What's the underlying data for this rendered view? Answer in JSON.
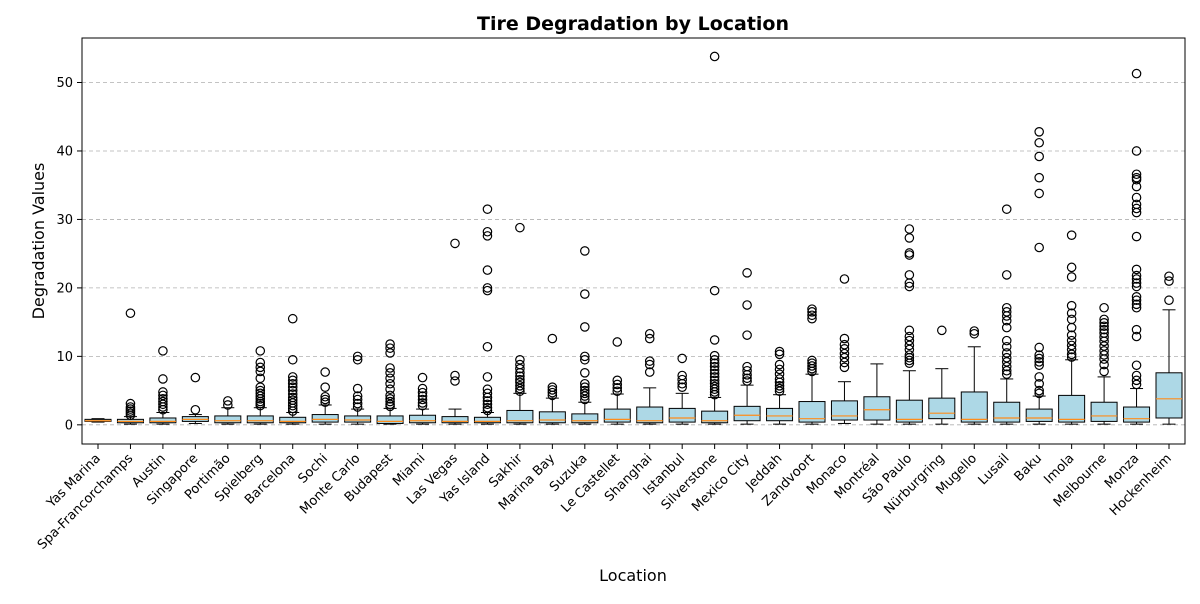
{
  "chart_data": {
    "type": "box",
    "title": "Tire Degradation by Location",
    "xlabel": "Location",
    "ylabel": "Degradation Values",
    "ylim": [
      -2.8,
      56.5
    ],
    "yticks": [
      0,
      10,
      20,
      30,
      40,
      50
    ],
    "grid": "y-dashed",
    "colors": {
      "box_fill": "#add8e6",
      "median": "#ff8c1a",
      "edge": "#000000",
      "grid": "#b0b0b0"
    },
    "categories": [
      "Yas Marina",
      "Spa-Francorchamps",
      "Austin",
      "Singapore",
      "Portimão",
      "Spielberg",
      "Barcelona",
      "Sochi",
      "Monte Carlo",
      "Budapest",
      "Miami",
      "Las Vegas",
      "Yas Island",
      "Sakhir",
      "Marina Bay",
      "Suzuka",
      "Le Castellet",
      "Shanghai",
      "Istanbul",
      "Silverstone",
      "Mexico City",
      "Jeddah",
      "Zandvoort",
      "Monaco",
      "Montréal",
      "São Paulo",
      "Nürburgring",
      "Mugello",
      "Lusail",
      "Baku",
      "Imola",
      "Melbourne",
      "Monza",
      "Hockenheim"
    ],
    "boxes": [
      {
        "whislo": 0.4,
        "q1": 0.5,
        "med": 0.6,
        "q3": 0.8,
        "whishi": 0.9,
        "fliers": []
      },
      {
        "whislo": 0.1,
        "q1": 0.3,
        "med": 0.5,
        "q3": 0.8,
        "whishi": 1.2,
        "fliers": [
          1.4,
          1.7,
          2.0,
          2.3,
          2.6,
          3.1,
          16.3
        ]
      },
      {
        "whislo": 0.1,
        "q1": 0.3,
        "med": 0.5,
        "q3": 1.0,
        "whishi": 1.8,
        "fliers": [
          2.2,
          2.6,
          3.0,
          3.4,
          3.8,
          4.3,
          4.8,
          6.7,
          10.8
        ]
      },
      {
        "whislo": 0.2,
        "q1": 0.5,
        "med": 0.8,
        "q3": 1.2,
        "whishi": 1.5,
        "fliers": [
          2.2,
          6.9
        ]
      },
      {
        "whislo": 0.1,
        "q1": 0.3,
        "med": 0.6,
        "q3": 1.3,
        "whishi": 2.5,
        "fliers": [
          2.9,
          3.5
        ]
      },
      {
        "whislo": 0.1,
        "q1": 0.3,
        "med": 0.6,
        "q3": 1.3,
        "whishi": 2.5,
        "fliers": [
          2.8,
          3.1,
          3.4,
          3.8,
          4.2,
          4.6,
          5.0,
          5.5,
          6.8,
          7.8,
          8.4,
          9.1,
          10.8
        ]
      },
      {
        "whislo": 0.1,
        "q1": 0.3,
        "med": 0.5,
        "q3": 1.1,
        "whishi": 1.8,
        "fliers": [
          2.0,
          2.4,
          2.8,
          3.2,
          3.6,
          4.0,
          4.5,
          5.0,
          5.5,
          6.0,
          6.5,
          7.0,
          9.5,
          15.5
        ]
      },
      {
        "whislo": 0.1,
        "q1": 0.4,
        "med": 0.8,
        "q3": 1.5,
        "whishi": 2.9,
        "fliers": [
          3.3,
          3.7,
          4.1,
          5.5,
          7.7
        ]
      },
      {
        "whislo": 0.1,
        "q1": 0.4,
        "med": 0.7,
        "q3": 1.3,
        "whishi": 2.3,
        "fliers": [
          2.6,
          3.1,
          3.7,
          4.2,
          5.3,
          9.5,
          10.0
        ]
      },
      {
        "whislo": 0.1,
        "q1": 0.2,
        "med": 0.5,
        "q3": 1.3,
        "whishi": 2.4,
        "fliers": [
          2.7,
          3.0,
          3.4,
          3.8,
          4.3,
          5.2,
          6.0,
          6.8,
          7.6,
          8.3,
          10.5,
          11.2,
          11.8
        ]
      },
      {
        "whislo": 0.1,
        "q1": 0.3,
        "med": 0.6,
        "q3": 1.4,
        "whishi": 2.3,
        "fliers": [
          2.8,
          3.2,
          3.7,
          4.2,
          4.7,
          5.3,
          6.9
        ]
      },
      {
        "whislo": 0.1,
        "q1": 0.3,
        "med": 0.5,
        "q3": 1.2,
        "whishi": 2.3,
        "fliers": [
          6.4,
          7.2,
          26.5
        ]
      },
      {
        "whislo": 0.1,
        "q1": 0.3,
        "med": 0.5,
        "q3": 1.1,
        "whishi": 1.8,
        "fliers": [
          2.1,
          2.5,
          3.0,
          3.5,
          4.0,
          4.6,
          5.2,
          7.0,
          11.4,
          19.6,
          20.0,
          22.6,
          27.6,
          28.2,
          31.5
        ]
      },
      {
        "whislo": 0.1,
        "q1": 0.3,
        "med": 0.6,
        "q3": 2.1,
        "whishi": 4.6,
        "fliers": [
          4.9,
          5.3,
          5.7,
          6.2,
          6.6,
          7.1,
          7.6,
          8.2,
          8.8,
          9.5,
          28.8
        ]
      },
      {
        "whislo": 0.1,
        "q1": 0.3,
        "med": 0.7,
        "q3": 1.9,
        "whishi": 3.9,
        "fliers": [
          4.3,
          4.7,
          5.1,
          5.5,
          12.6
        ]
      },
      {
        "whislo": 0.1,
        "q1": 0.3,
        "med": 0.6,
        "q3": 1.6,
        "whishi": 3.3,
        "fliers": [
          3.7,
          4.2,
          4.6,
          5.0,
          5.5,
          6.0,
          7.6,
          9.5,
          10.0,
          14.3,
          19.1,
          25.4
        ]
      },
      {
        "whislo": 0.1,
        "q1": 0.4,
        "med": 0.8,
        "q3": 2.3,
        "whishi": 4.5,
        "fliers": [
          4.9,
          5.4,
          5.9,
          6.5,
          12.1
        ]
      },
      {
        "whislo": 0.1,
        "q1": 0.3,
        "med": 0.6,
        "q3": 2.6,
        "whishi": 5.4,
        "fliers": [
          7.7,
          8.8,
          9.3,
          12.6,
          13.3
        ]
      },
      {
        "whislo": 0.1,
        "q1": 0.4,
        "med": 1.0,
        "q3": 2.4,
        "whishi": 4.6,
        "fliers": [
          5.5,
          6.0,
          6.6,
          7.2,
          9.7
        ]
      },
      {
        "whislo": 0.1,
        "q1": 0.3,
        "med": 0.6,
        "q3": 2.0,
        "whishi": 4.0,
        "fliers": [
          4.4,
          4.8,
          5.2,
          5.6,
          6.0,
          6.5,
          7.0,
          7.5,
          8.0,
          8.5,
          9.0,
          9.5,
          10.1,
          12.4,
          19.6,
          53.8
        ]
      },
      {
        "whislo": 0.1,
        "q1": 0.6,
        "med": 1.4,
        "q3": 2.7,
        "whishi": 5.8,
        "fliers": [
          6.4,
          6.8,
          7.3,
          7.9,
          8.5,
          13.1,
          17.5,
          22.2
        ]
      },
      {
        "whislo": 0.1,
        "q1": 0.6,
        "med": 1.3,
        "q3": 2.4,
        "whishi": 4.4,
        "fliers": [
          4.9,
          5.3,
          5.7,
          6.2,
          6.7,
          7.4,
          8.1,
          8.8,
          10.3,
          10.7
        ]
      },
      {
        "whislo": 0.1,
        "q1": 0.4,
        "med": 0.9,
        "q3": 3.4,
        "whishi": 7.4,
        "fliers": [
          7.8,
          8.2,
          8.6,
          9.0,
          9.4,
          15.5,
          16.0,
          16.5,
          16.9
        ]
      },
      {
        "whislo": 0.2,
        "q1": 0.7,
        "med": 1.3,
        "q3": 3.5,
        "whishi": 6.3,
        "fliers": [
          8.4,
          9.1,
          9.8,
          10.4,
          11.1,
          11.7,
          12.6,
          21.3
        ]
      },
      {
        "whislo": 0.1,
        "q1": 0.7,
        "med": 2.2,
        "q3": 4.1,
        "whishi": 8.9,
        "fliers": []
      },
      {
        "whislo": 0.1,
        "q1": 0.4,
        "med": 0.8,
        "q3": 3.6,
        "whishi": 7.9,
        "fliers": [
          9.0,
          9.4,
          9.8,
          10.2,
          11.0,
          11.6,
          12.3,
          12.9,
          13.8,
          20.2,
          20.7,
          21.9,
          24.8,
          25.1,
          27.3,
          28.6
        ]
      },
      {
        "whislo": 0.1,
        "q1": 0.9,
        "med": 1.7,
        "q3": 3.9,
        "whishi": 8.2,
        "fliers": [
          13.8
        ]
      },
      {
        "whislo": 0.1,
        "q1": 0.4,
        "med": 0.8,
        "q3": 4.8,
        "whishi": 11.4,
        "fliers": [
          13.3,
          13.7
        ]
      },
      {
        "whislo": 0.1,
        "q1": 0.4,
        "med": 1.0,
        "q3": 3.3,
        "whishi": 6.7,
        "fliers": [
          7.4,
          7.9,
          8.5,
          9.2,
          9.8,
          10.5,
          11.4,
          12.3,
          14.2,
          15.2,
          15.9,
          16.5,
          17.1,
          21.9,
          31.5
        ]
      },
      {
        "whislo": 0.1,
        "q1": 0.5,
        "med": 1.0,
        "q3": 2.3,
        "whishi": 4.2,
        "fliers": [
          4.6,
          5.0,
          6.0,
          7.0,
          8.7,
          9.2,
          9.7,
          10.2,
          11.3,
          25.9,
          33.8,
          36.1,
          39.2,
          41.2,
          42.8
        ]
      },
      {
        "whislo": 0.1,
        "q1": 0.4,
        "med": 0.8,
        "q3": 4.3,
        "whishi": 9.5,
        "fliers": [
          9.9,
          10.3,
          11.0,
          11.6,
          12.3,
          13.1,
          14.2,
          15.4,
          16.3,
          17.4,
          21.6,
          23.0,
          27.7
        ]
      },
      {
        "whislo": 0.1,
        "q1": 0.5,
        "med": 1.3,
        "q3": 3.3,
        "whishi": 7.0,
        "fliers": [
          7.8,
          8.8,
          9.6,
          10.2,
          10.8,
          11.5,
          12.2,
          12.8,
          13.4,
          13.9,
          14.4,
          14.9,
          15.4,
          17.1
        ]
      },
      {
        "whislo": 0.1,
        "q1": 0.4,
        "med": 0.9,
        "q3": 2.6,
        "whishi": 5.3,
        "fliers": [
          5.9,
          6.5,
          7.2,
          8.7,
          12.9,
          13.9,
          17.1,
          17.6,
          18.2,
          18.7,
          20.2,
          20.7,
          21.3,
          21.8,
          22.7,
          27.5,
          31.0,
          31.6,
          32.2,
          33.2,
          34.8,
          35.8,
          36.1,
          36.6,
          40.0,
          51.3
        ]
      },
      {
        "whislo": 0.1,
        "q1": 1.0,
        "med": 3.8,
        "q3": 7.6,
        "whishi": 16.8,
        "fliers": [
          18.2,
          21.0,
          21.7
        ]
      }
    ]
  }
}
